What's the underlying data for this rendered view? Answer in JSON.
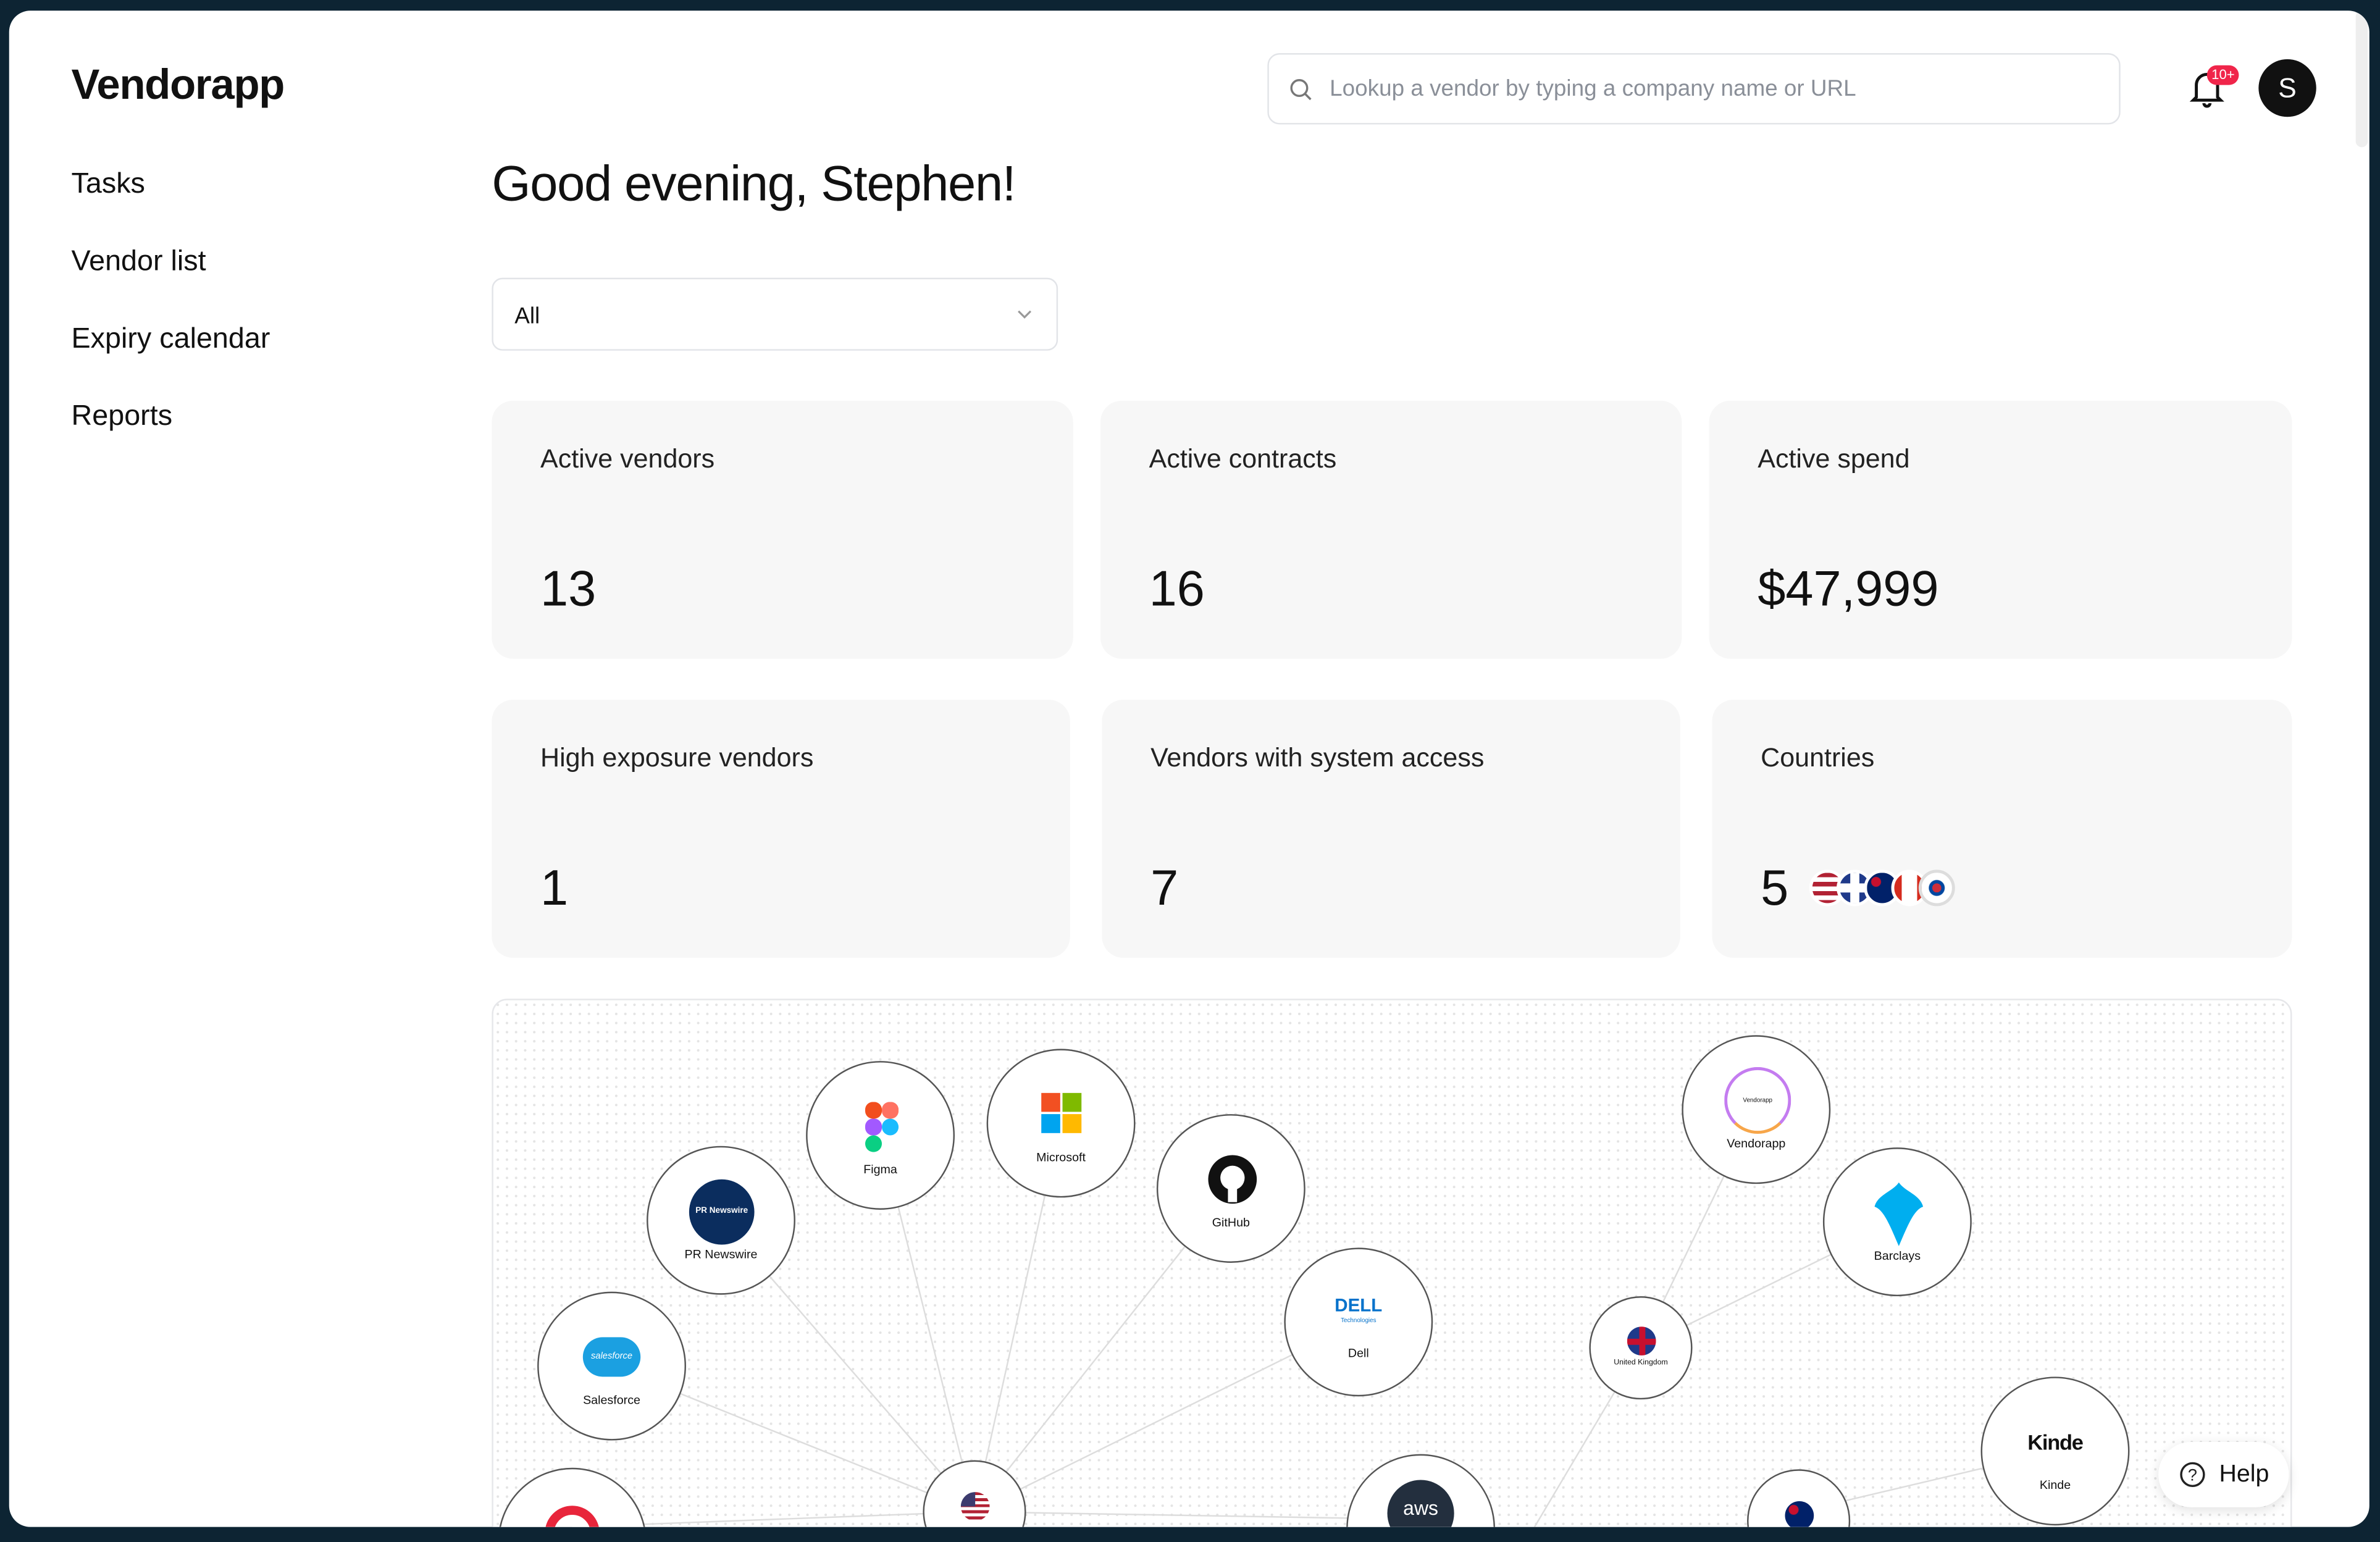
{
  "app": {
    "name": "Vendorapp"
  },
  "sidebar": {
    "items": [
      {
        "label": "Tasks"
      },
      {
        "label": "Vendor list"
      },
      {
        "label": "Expiry calendar"
      },
      {
        "label": "Reports"
      }
    ]
  },
  "header": {
    "search_placeholder": "Lookup a vendor by typing a company name or URL",
    "notification_count": "10+",
    "avatar_initial": "S"
  },
  "main": {
    "greeting": "Good evening, Stephen!",
    "filter": {
      "selected": "All"
    },
    "cards": [
      {
        "label": "Active vendors",
        "value": "13"
      },
      {
        "label": "Active contracts",
        "value": "16"
      },
      {
        "label": "Active spend",
        "value": "$47,999"
      },
      {
        "label": "High exposure vendors",
        "value": "1"
      },
      {
        "label": "Vendors with system access",
        "value": "7"
      },
      {
        "label": "Countries",
        "value": "5"
      }
    ],
    "country_flags": [
      "United States",
      "United Kingdom",
      "Australia",
      "Canada",
      "South Korea"
    ]
  },
  "graph": {
    "nodes": [
      {
        "label": "Figma"
      },
      {
        "label": "Microsoft"
      },
      {
        "label": "GitHub"
      },
      {
        "label": "PR Newswire",
        "logo_text": "PR Newswire"
      },
      {
        "label": "Salesforce",
        "logo_text": "salesforce"
      },
      {
        "label": "Dell",
        "logo_text": "DELL",
        "logo_sub": "Technologies"
      },
      {
        "label": "Vendorapp",
        "logo_text": "Vendorapp"
      },
      {
        "label": "Barclays"
      },
      {
        "label": "United Kingdom"
      },
      {
        "label": "Kinde",
        "logo_text": "Kinde"
      },
      {
        "label": "aws",
        "logo_text": "aws"
      }
    ]
  },
  "help": {
    "label": "Help"
  },
  "colors": {
    "frame": "#0d2433",
    "badge": "#f0254a",
    "card_bg": "#f7f7f7"
  }
}
